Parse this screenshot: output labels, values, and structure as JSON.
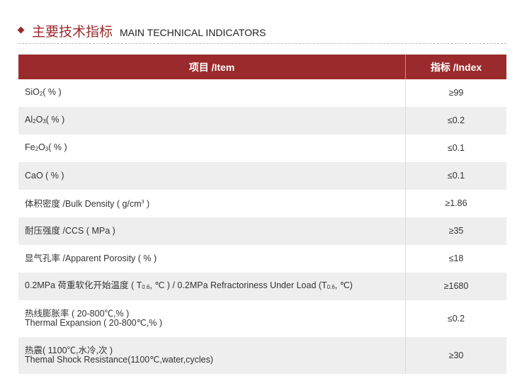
{
  "heading": {
    "cn": "主要技术指标",
    "en": "MAIN TECHNICAL INDICATORS",
    "accent": "#9b2a2c"
  },
  "table": {
    "headers": [
      "项目 /Item",
      "指标 /Index"
    ],
    "rows": [
      {
        "a": "SiO",
        "sub": "2",
        "b": "( % )",
        "value": "≥99"
      },
      {
        "a": "Al",
        "sub": "2",
        "m": "O",
        "sub2": "3",
        "b": "( % )",
        "value": "≤0.2"
      },
      {
        "a": "Fe",
        "sub": "2",
        "m": "O",
        "sub2": "3",
        "b": "( % )",
        "value": "≤0.1"
      },
      {
        "a": "CaO ( % )",
        "value": "≤0.1"
      },
      {
        "a": "体积密度 /Bulk Density ( g/cm",
        "sup": "3",
        "b": " )",
        "value": "≥1.86"
      },
      {
        "a": "耐压强度 /CCS ( MPa )",
        "value": "≥35"
      },
      {
        "a": "显气孔率 /Apparent Porosity ( % )",
        "value": "≤18"
      },
      {
        "a": "0.2MPa 荷重软化开始温度 ( T",
        "sub": "0.6",
        "m": ", ℃ ) / 0.2MPa Refractoriness Under Load (T",
        "sub2": "0.6",
        "b": ", ℃)",
        "value": "≥1680"
      },
      {
        "a": "热线膨胀率 ( 20-800℃,% )",
        "line2": "Thermal Expansion ( 20-800℃,% )",
        "value": "≤0.2"
      },
      {
        "a": "热震( 1100℃,水冷,次 )",
        "line2": "Themal Shock Resistance(1100℃,water,cycles)",
        "value": "≥30"
      }
    ]
  }
}
